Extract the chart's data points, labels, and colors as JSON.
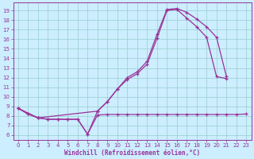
{
  "xlabel": "Windchill (Refroidissement éolien,°C)",
  "bg_color": "#cceeff",
  "line_color": "#993399",
  "grid_color": "#99cccc",
  "axis_color": "#993399",
  "xlim": [
    -0.5,
    23.5
  ],
  "ylim": [
    5.5,
    19.8
  ],
  "xticks": [
    0,
    1,
    2,
    3,
    4,
    5,
    6,
    7,
    8,
    9,
    10,
    11,
    12,
    13,
    14,
    15,
    16,
    17,
    18,
    19,
    20,
    21,
    22,
    23
  ],
  "yticks": [
    6,
    7,
    8,
    9,
    10,
    11,
    12,
    13,
    14,
    15,
    16,
    17,
    18,
    19
  ],
  "tick_fontsize": 5,
  "xlabel_fontsize": 5.5,
  "line1_x": [
    0,
    1,
    2,
    3,
    4,
    5,
    6,
    7,
    8,
    9,
    10,
    11,
    12,
    13,
    14,
    15,
    16,
    17,
    18,
    19,
    20,
    21,
    22,
    23
  ],
  "line1_y": [
    8.8,
    8.2,
    7.8,
    7.65,
    7.65,
    7.65,
    7.65,
    6.1,
    8.1,
    8.15,
    8.15,
    8.15,
    8.15,
    8.15,
    8.15,
    8.15,
    8.15,
    8.15,
    8.15,
    8.15,
    8.15,
    8.15,
    8.15,
    8.2
  ],
  "line2_x": [
    0,
    1,
    2,
    3,
    4,
    5,
    6,
    7,
    8,
    9,
    10,
    11,
    12,
    13,
    14,
    15,
    16,
    17,
    18,
    19,
    20,
    21,
    22,
    23
  ],
  "line2_y": [
    8.8,
    8.2,
    7.8,
    7.65,
    7.65,
    7.65,
    7.65,
    6.1,
    8.5,
    9.5,
    10.8,
    11.8,
    12.4,
    13.4,
    16.1,
    19.0,
    19.1,
    18.2,
    17.3,
    16.2,
    12.1,
    11.9,
    null,
    null
  ],
  "line3_x": [
    0,
    2,
    8,
    9,
    10,
    11,
    12,
    13,
    14,
    15,
    16,
    17,
    18,
    19,
    20,
    21
  ],
  "line3_y": [
    8.8,
    7.8,
    8.5,
    9.5,
    10.8,
    12.0,
    12.6,
    13.7,
    16.5,
    19.1,
    19.2,
    18.8,
    18.1,
    17.3,
    16.2,
    12.1
  ]
}
